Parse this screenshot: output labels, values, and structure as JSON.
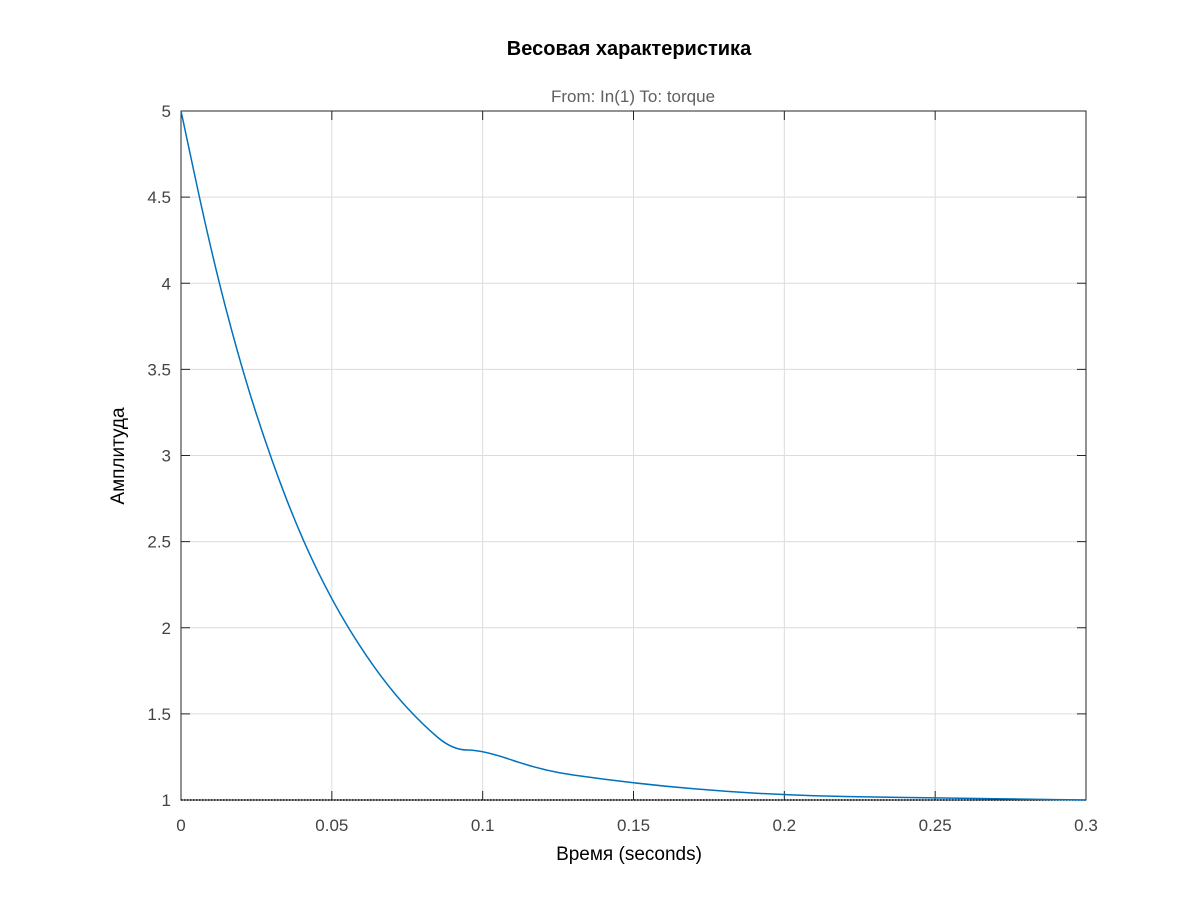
{
  "chart_data": {
    "type": "line",
    "title": "Весовая характеристика",
    "subtitle": "From: In(1)  To: torque",
    "xlabel": "Время (seconds)",
    "ylabel": "Амплитуда",
    "xlim": [
      0,
      0.3
    ],
    "ylim": [
      1,
      5
    ],
    "grid": true,
    "x_ticks": [
      0,
      0.05,
      0.1,
      0.15,
      0.2,
      0.25,
      0.3
    ],
    "x_tick_labels": [
      "0",
      "0.05",
      "0.1",
      "0.15",
      "0.2",
      "0.25",
      "0.3"
    ],
    "y_ticks": [
      1,
      1.5,
      2,
      2.5,
      3,
      3.5,
      4,
      4.5,
      5
    ],
    "y_tick_labels": [
      "1",
      "1.5",
      "2",
      "2.5",
      "3",
      "3.5",
      "4",
      "4.5",
      "5"
    ],
    "series": [
      {
        "color": "#0072bd",
        "x": [
          0,
          0.01,
          0.02,
          0.03,
          0.04,
          0.05,
          0.06,
          0.07,
          0.08,
          0.09,
          0.1,
          0.12,
          0.14,
          0.16,
          0.18,
          0.2,
          0.22,
          0.24,
          0.26,
          0.28,
          0.3
        ],
        "y": [
          5.0,
          4.18,
          3.51,
          2.97,
          2.52,
          2.16,
          1.87,
          1.63,
          1.44,
          1.29,
          1.33,
          1.17,
          1.12,
          1.08,
          1.05,
          1.03,
          1.02,
          1.015,
          1.01,
          1.005,
          1.0
        ]
      }
    ],
    "reference_line": {
      "y": 1,
      "color": "#000000",
      "style": "dotted"
    }
  }
}
